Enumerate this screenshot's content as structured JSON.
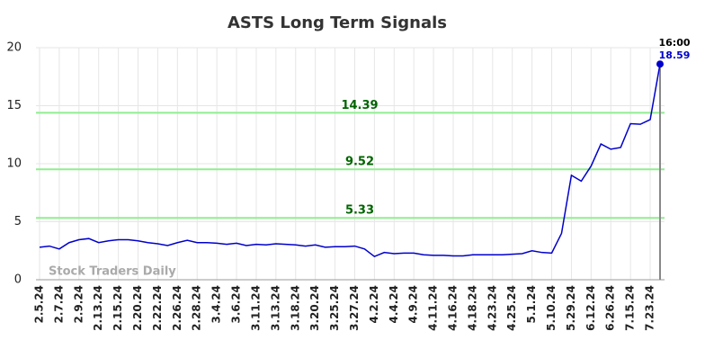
{
  "chart_data": {
    "type": "line",
    "title": "ASTS Long Term Signals",
    "categories": [
      "2.5.24",
      null,
      "2.7.24",
      null,
      "2.9.24",
      null,
      "2.13.24",
      null,
      "2.15.24",
      null,
      "2.20.24",
      null,
      "2.22.24",
      null,
      "2.26.24",
      null,
      "2.28.24",
      null,
      "3.4.24",
      null,
      "3.6.24",
      null,
      "3.11.24",
      null,
      "3.13.24",
      null,
      "3.18.24",
      null,
      "3.20.24",
      null,
      "3.25.24",
      null,
      "3.27.24",
      null,
      "4.2.24",
      null,
      "4.4.24",
      null,
      "4.9.24",
      null,
      "4.11.24",
      null,
      "4.16.24",
      null,
      "4.18.24",
      null,
      "4.23.24",
      null,
      "4.25.24",
      null,
      "5.1.24",
      null,
      "5.10.24",
      null,
      "5.29.24",
      null,
      "6.12.24",
      null,
      "6.26.24",
      null,
      "7.15.24",
      null,
      "7.23.24",
      null
    ],
    "values": [
      2.8,
      2.9,
      2.65,
      3.2,
      3.45,
      3.55,
      3.2,
      3.35,
      3.45,
      3.45,
      3.35,
      3.2,
      3.1,
      2.95,
      3.2,
      3.4,
      3.2,
      3.2,
      3.15,
      3.05,
      3.15,
      2.95,
      3.05,
      3.0,
      3.1,
      3.05,
      3.0,
      2.9,
      3.0,
      2.8,
      2.85,
      2.85,
      2.9,
      2.65,
      2.0,
      2.35,
      2.25,
      2.3,
      2.3,
      2.15,
      2.1,
      2.1,
      2.05,
      2.05,
      2.15,
      2.15,
      2.15,
      2.15,
      2.2,
      2.25,
      2.5,
      2.35,
      2.3,
      4.0,
      9.0,
      8.5,
      9.8,
      11.7,
      11.25,
      11.4,
      13.45,
      13.4,
      13.8,
      18.59
    ],
    "color": "#0000cc",
    "ylim": [
      0,
      20
    ],
    "yticks": [
      0,
      5,
      10,
      15,
      20
    ],
    "grid": true,
    "reference_lines": [
      {
        "value": 14.39,
        "color": "#90ee90"
      },
      {
        "value": 9.52,
        "color": "#90ee90"
      },
      {
        "value": 5.33,
        "color": "#90ee90"
      }
    ],
    "end_time": "16:00",
    "watermark": "Stock Traders Daily"
  }
}
